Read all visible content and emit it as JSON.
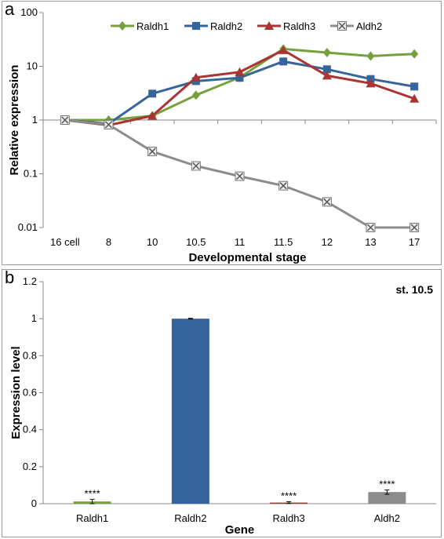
{
  "panels": {
    "a_label": "a",
    "b_label": "b"
  },
  "chart_data": [
    {
      "type": "line",
      "title": "",
      "xlabel": "Developmental stage",
      "ylabel": "Relative expression",
      "y_scale": "log",
      "ylim": [
        0.01,
        100
      ],
      "y_ticks": [
        "0.01",
        "0.1",
        "1",
        "10",
        "100"
      ],
      "grid": false,
      "legend_position": "top",
      "categories": [
        "16 cell",
        "8",
        "10",
        "10.5",
        "11",
        "11.5",
        "12",
        "13",
        "17"
      ],
      "series": [
        {
          "name": "Raldh1",
          "color": "#76a03c",
          "marker": "diamond",
          "values": [
            1,
            1,
            1.2,
            2.9,
            6.2,
            21,
            18,
            15.5,
            17
          ]
        },
        {
          "name": "Raldh2",
          "color": "#35659b",
          "marker": "square",
          "values": [
            1,
            0.85,
            3.1,
            5.3,
            6.1,
            12.3,
            8.8,
            5.8,
            4.2
          ]
        },
        {
          "name": "Raldh3",
          "color": "#a93432",
          "marker": "triangle",
          "values": [
            1,
            0.8,
            1.2,
            6.2,
            7.8,
            20,
            6.7,
            4.8,
            2.5
          ]
        },
        {
          "name": "Aldh2",
          "color": "#8c8c8c",
          "marker": "x",
          "values": [
            1,
            0.82,
            0.26,
            0.14,
            0.09,
            0.06,
            0.03,
            0.01,
            0.01
          ]
        }
      ]
    },
    {
      "type": "bar",
      "title": "",
      "annotation": "st. 10.5",
      "xlabel": "Gene",
      "ylabel": "Expression level",
      "ylim": [
        0,
        1.2
      ],
      "y_ticks": [
        "0",
        "0.2",
        "0.4",
        "0.6",
        "0.8",
        "1",
        "1.2"
      ],
      "grid": false,
      "categories": [
        "Raldh1",
        "Raldh2",
        "Raldh3",
        "Aldh2"
      ],
      "values": [
        0.012,
        1.0,
        0.006,
        0.063
      ],
      "errors": [
        0.012,
        0.002,
        0.005,
        0.012
      ],
      "colors": [
        "#76a03c",
        "#35659b",
        "#a93432",
        "#8c8c8c"
      ],
      "significance": [
        "****",
        "",
        "****",
        "****"
      ]
    }
  ]
}
